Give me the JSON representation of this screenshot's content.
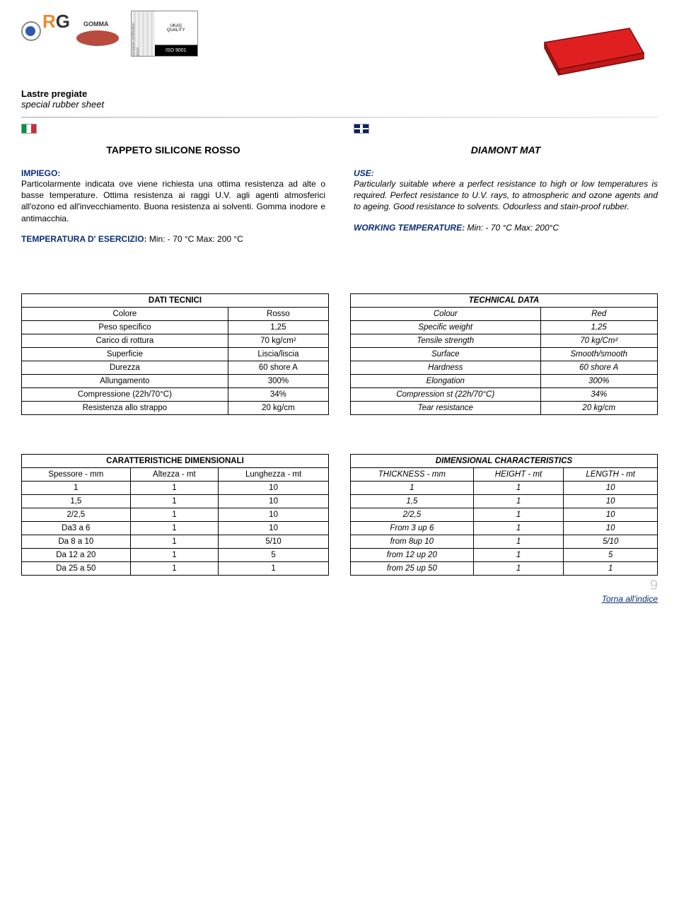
{
  "header": {
    "sub1": "Lastre pregiate",
    "sub2": "special rubber sheet"
  },
  "titles": {
    "it": "TAPPETO SILICONE ROSSO",
    "en": "DIAMONT MAT"
  },
  "labels": {
    "impiego": "IMPIEGO:",
    "use": "USE:",
    "temp_it_lbl": "TEMPERATURA D' ESERCIZIO:",
    "temp_it_val": "  Min: - 70 °C Max: 200 °C",
    "temp_en_lbl": "WORKING TEMPERATURE:",
    "temp_en_val": "  Min: - 70 °C Max: 200°C"
  },
  "para": {
    "it": "Particolarmente indicata ove viene richiesta una ottima resistenza ad alte o basse temperature. Ottima resistenza ai raggi U.V. agli agenti atmosferici all'ozono ed all'invecchiamento. Buona resistenza ai solventi. Gomma inodore e antimacchia.",
    "en": "Particularly suitable where a perfect resistance to high or low temperatures is required. Perfect resistance to U.V. rays, to atmospheric and ozone agents and to ageing. Good resistance to solvents. Odourless and stain-proof rubber."
  },
  "tech_it": {
    "title": "DATI TECNICI",
    "rows": [
      [
        "Colore",
        "Rosso"
      ],
      [
        "Peso specifico",
        "1,25"
      ],
      [
        "Carico di rottura",
        "70 kg/cm²"
      ],
      [
        "Superficie",
        "Liscia/liscia"
      ],
      [
        "Durezza",
        "60 shore A"
      ],
      [
        "Allungamento",
        "300%"
      ],
      [
        "Compressione (22h/70°C)",
        "34%"
      ],
      [
        "Resistenza allo strappo",
        "20 kg/cm"
      ]
    ]
  },
  "tech_en": {
    "title": "TECHNICAL DATA",
    "rows": [
      [
        "Colour",
        "Red"
      ],
      [
        "Specific weight",
        "1,25"
      ],
      [
        "Tensile strength",
        "70  kg/Cm²"
      ],
      [
        "Surface",
        "Smooth/smooth"
      ],
      [
        "Hardness",
        "60 shore A"
      ],
      [
        "Elongation",
        "300%"
      ],
      [
        "Compression st (22h/70°C)",
        "34%"
      ],
      [
        "Tear resistance",
        "20 kg/cm"
      ]
    ]
  },
  "dim_it": {
    "title": "CARATTERISTICHE DIMENSIONALI",
    "headers": [
      "Spessore - mm",
      "Altezza - mt",
      "Lunghezza - mt"
    ],
    "rows": [
      [
        "1",
        "1",
        "10"
      ],
      [
        "1,5",
        "1",
        "10"
      ],
      [
        "2/2,5",
        "1",
        "10"
      ],
      [
        "Da3 a 6",
        "1",
        "10"
      ],
      [
        "Da 8 a 10",
        "1",
        "5/10"
      ],
      [
        "Da 12 a 20",
        "1",
        "5"
      ],
      [
        "Da 25 a 50",
        "1",
        "1"
      ]
    ]
  },
  "dim_en": {
    "title": "DIMENSIONAL CHARACTERISTICS",
    "headers": [
      "THICKNESS - mm",
      "HEIGHT - mt",
      "LENGTH - mt"
    ],
    "rows": [
      [
        "1",
        "1",
        "10"
      ],
      [
        "1,5",
        "1",
        "10"
      ],
      [
        "2/2,5",
        "1",
        "10"
      ],
      [
        "From 3 up 6",
        "1",
        "10"
      ],
      [
        "from 8up 10",
        "1",
        "5/10"
      ],
      [
        "from 12 up 20",
        "1",
        "5"
      ],
      [
        "from 25 up 50",
        "1",
        "1"
      ]
    ]
  },
  "footer": {
    "page": "9",
    "link": "Torna all'indice"
  },
  "colors": {
    "sheet_fill": "#e02020",
    "sheet_stroke": "#7a0d0d",
    "link": "#0a2d7a"
  }
}
